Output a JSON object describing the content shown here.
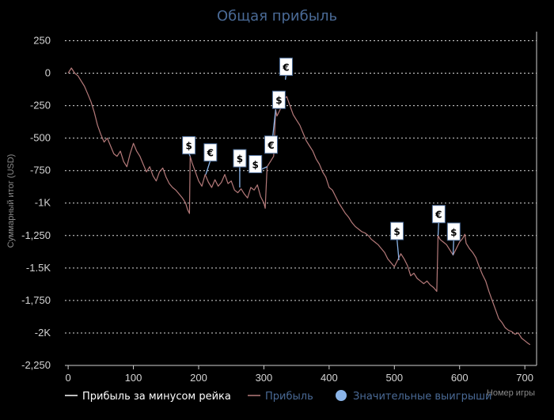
{
  "chart_data": {
    "type": "line",
    "title": "Общая прибыль",
    "xlabel": "Номер игры",
    "ylabel": "Суммарный итог (USD)",
    "xlim": [
      -5,
      718
    ],
    "ylim": [
      -2250,
      320
    ],
    "x_ticks": [
      0,
      100,
      200,
      300,
      400,
      500,
      600,
      700
    ],
    "y_ticks": [
      {
        "value": 250,
        "label": "250"
      },
      {
        "value": 0,
        "label": "0"
      },
      {
        "value": -250,
        "label": "-250"
      },
      {
        "value": -500,
        "label": "-500"
      },
      {
        "value": -750,
        "label": "-750"
      },
      {
        "value": -1000,
        "label": "-1K"
      },
      {
        "value": -1250,
        "label": "-1,250"
      },
      {
        "value": -1500,
        "label": "-1.5K"
      },
      {
        "value": -1750,
        "label": "-1,750"
      },
      {
        "value": -2000,
        "label": "-2K"
      },
      {
        "value": -2250,
        "label": "-2,250"
      }
    ],
    "grid": true,
    "legend_position": "bottom",
    "series": [
      {
        "name": "Прибыль за минусом рейка",
        "color": "#ffffff",
        "points": []
      },
      {
        "name": "Прибыль",
        "color": "#b57a7a",
        "points": [
          [
            0,
            0
          ],
          [
            5,
            40
          ],
          [
            10,
            0
          ],
          [
            15,
            -20
          ],
          [
            20,
            -60
          ],
          [
            25,
            -100
          ],
          [
            30,
            -160
          ],
          [
            35,
            -220
          ],
          [
            40,
            -300
          ],
          [
            45,
            -400
          ],
          [
            50,
            -470
          ],
          [
            55,
            -530
          ],
          [
            60,
            -500
          ],
          [
            65,
            -560
          ],
          [
            70,
            -620
          ],
          [
            75,
            -640
          ],
          [
            80,
            -600
          ],
          [
            85,
            -680
          ],
          [
            90,
            -720
          ],
          [
            95,
            -620
          ],
          [
            100,
            -540
          ],
          [
            105,
            -600
          ],
          [
            110,
            -640
          ],
          [
            115,
            -700
          ],
          [
            120,
            -760
          ],
          [
            125,
            -720
          ],
          [
            130,
            -790
          ],
          [
            135,
            -830
          ],
          [
            140,
            -760
          ],
          [
            145,
            -730
          ],
          [
            150,
            -800
          ],
          [
            155,
            -850
          ],
          [
            160,
            -880
          ],
          [
            165,
            -900
          ],
          [
            170,
            -930
          ],
          [
            175,
            -960
          ],
          [
            180,
            -1000
          ],
          [
            183,
            -1050
          ],
          [
            186,
            -1080
          ],
          [
            187,
            -640
          ],
          [
            190,
            -690
          ],
          [
            195,
            -760
          ],
          [
            200,
            -830
          ],
          [
            205,
            -870
          ],
          [
            210,
            -780
          ],
          [
            215,
            -840
          ],
          [
            220,
            -880
          ],
          [
            225,
            -820
          ],
          [
            230,
            -870
          ],
          [
            235,
            -840
          ],
          [
            240,
            -780
          ],
          [
            245,
            -850
          ],
          [
            250,
            -830
          ],
          [
            255,
            -900
          ],
          [
            260,
            -920
          ],
          [
            265,
            -890
          ],
          [
            270,
            -930
          ],
          [
            275,
            -960
          ],
          [
            280,
            -880
          ],
          [
            285,
            -900
          ],
          [
            290,
            -860
          ],
          [
            295,
            -950
          ],
          [
            300,
            -1000
          ],
          [
            302,
            -1040
          ],
          [
            305,
            -720
          ],
          [
            310,
            -680
          ],
          [
            315,
            -640
          ],
          [
            318,
            -280
          ],
          [
            320,
            -330
          ],
          [
            325,
            -280
          ],
          [
            330,
            -200
          ],
          [
            335,
            -180
          ],
          [
            340,
            -250
          ],
          [
            345,
            -320
          ],
          [
            350,
            -360
          ],
          [
            355,
            -400
          ],
          [
            360,
            -460
          ],
          [
            365,
            -520
          ],
          [
            370,
            -560
          ],
          [
            375,
            -600
          ],
          [
            380,
            -660
          ],
          [
            385,
            -700
          ],
          [
            390,
            -760
          ],
          [
            395,
            -800
          ],
          [
            400,
            -880
          ],
          [
            405,
            -900
          ],
          [
            410,
            -950
          ],
          [
            415,
            -1000
          ],
          [
            420,
            -1040
          ],
          [
            425,
            -1080
          ],
          [
            430,
            -1110
          ],
          [
            435,
            -1150
          ],
          [
            440,
            -1180
          ],
          [
            445,
            -1200
          ],
          [
            450,
            -1220
          ],
          [
            455,
            -1230
          ],
          [
            460,
            -1250
          ],
          [
            465,
            -1280
          ],
          [
            470,
            -1300
          ],
          [
            475,
            -1320
          ],
          [
            480,
            -1350
          ],
          [
            485,
            -1380
          ],
          [
            490,
            -1430
          ],
          [
            495,
            -1460
          ],
          [
            500,
            -1490
          ],
          [
            505,
            -1440
          ],
          [
            510,
            -1390
          ],
          [
            515,
            -1430
          ],
          [
            520,
            -1480
          ],
          [
            525,
            -1560
          ],
          [
            530,
            -1540
          ],
          [
            535,
            -1580
          ],
          [
            540,
            -1600
          ],
          [
            545,
            -1620
          ],
          [
            550,
            -1600
          ],
          [
            555,
            -1630
          ],
          [
            560,
            -1650
          ],
          [
            565,
            -1680
          ],
          [
            567,
            -1250
          ],
          [
            570,
            -1280
          ],
          [
            575,
            -1300
          ],
          [
            580,
            -1320
          ],
          [
            585,
            -1360
          ],
          [
            590,
            -1400
          ],
          [
            595,
            -1350
          ],
          [
            600,
            -1300
          ],
          [
            605,
            -1270
          ],
          [
            608,
            -1240
          ],
          [
            610,
            -1310
          ],
          [
            615,
            -1350
          ],
          [
            620,
            -1380
          ],
          [
            625,
            -1420
          ],
          [
            630,
            -1490
          ],
          [
            635,
            -1550
          ],
          [
            640,
            -1600
          ],
          [
            645,
            -1680
          ],
          [
            650,
            -1750
          ],
          [
            655,
            -1820
          ],
          [
            660,
            -1890
          ],
          [
            665,
            -1920
          ],
          [
            670,
            -1960
          ],
          [
            675,
            -1980
          ],
          [
            680,
            -1990
          ],
          [
            685,
            -2010
          ],
          [
            690,
            -2000
          ],
          [
            695,
            -2040
          ],
          [
            700,
            -2060
          ],
          [
            705,
            -2080
          ],
          [
            708,
            -2090
          ]
        ]
      },
      {
        "name": "Значительные выигрыши",
        "color": "#8ab4e8",
        "markers": [
          {
            "x": 187,
            "y": -640,
            "symbol": "$",
            "label_x": 185,
            "label_y": -555
          },
          {
            "x": 211,
            "y": -780,
            "symbol": "€",
            "label_x": 218,
            "label_y": -610
          },
          {
            "x": 263,
            "y": -880,
            "symbol": "$",
            "label_x": 263,
            "label_y": -655
          },
          {
            "x": 305,
            "y": -720,
            "symbol": "$",
            "label_x": 287,
            "label_y": -700
          },
          {
            "x": 318,
            "y": -280,
            "symbol": "€",
            "label_x": 311,
            "label_y": -550
          },
          {
            "x": 319,
            "y": -160,
            "symbol": "$",
            "label_x": 323,
            "label_y": -205
          },
          {
            "x": 333,
            "y": -50,
            "symbol": "€",
            "label_x": 334,
            "label_y": 50
          },
          {
            "x": 507,
            "y": -1440,
            "symbol": "$",
            "label_x": 504,
            "label_y": -1215
          },
          {
            "x": 567,
            "y": -1250,
            "symbol": "€",
            "label_x": 568,
            "label_y": -1085
          },
          {
            "x": 590,
            "y": -1400,
            "symbol": "$",
            "label_x": 591,
            "label_y": -1220
          }
        ]
      }
    ]
  },
  "legend": {
    "items": [
      {
        "label": "Прибыль за минусом рейка",
        "color": "#ffffff",
        "text_color": "#ffffff",
        "kind": "line"
      },
      {
        "label": "Прибыль",
        "color": "#b57a7a",
        "text_color": "#4a6a96",
        "kind": "line"
      },
      {
        "label": "Значительные выигрыши",
        "color": "#8ab4e8",
        "text_color": "#4a6a96",
        "kind": "dot"
      }
    ]
  }
}
